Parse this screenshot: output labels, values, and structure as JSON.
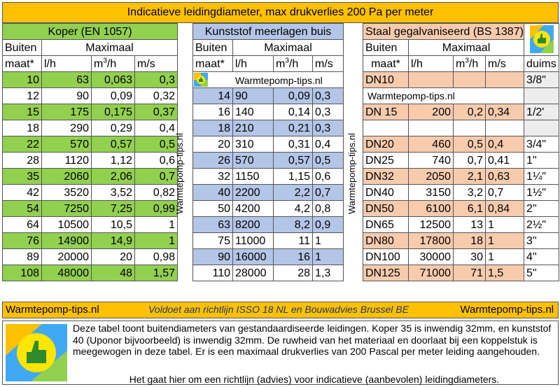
{
  "title": "Indicatieve leidingdiameter, max drukverlies 200 Pa per meter",
  "watermark": "Warmtepomp-tips.nl",
  "colors": {
    "header_orange": "#ffc000",
    "green": "#92d050",
    "blue": "#b4c6e7",
    "salmon": "#f8cbad"
  },
  "koper": {
    "title": "Koper  (EN 1057)",
    "h_buiten": "Buiten",
    "h_maximaal": "Maximaal",
    "h_maat": "maat*",
    "h_lh": "l/h",
    "h_m3": "m",
    "h_m3_sup": "3",
    "h_m3_tail": "/h",
    "h_ms": "m/s",
    "rows": [
      [
        "10",
        "63",
        "0,063",
        "0,3"
      ],
      [
        "12",
        "90",
        "0,09",
        "0,32"
      ],
      [
        "15",
        "175",
        "0,175",
        "0,37"
      ],
      [
        "18",
        "290",
        "0,29",
        "0,4"
      ],
      [
        "22",
        "570",
        "0,57",
        "0,5"
      ],
      [
        "28",
        "1120",
        "1,12",
        "0,6"
      ],
      [
        "35",
        "2060",
        "2,06",
        "0,7"
      ],
      [
        "42",
        "3520",
        "3,52",
        "0,82"
      ],
      [
        "54",
        "7250",
        "7,25",
        "0,99"
      ],
      [
        "64",
        "10500",
        "10,5",
        "1"
      ],
      [
        "76",
        "14900",
        "14,9",
        "1"
      ],
      [
        "89",
        "20000",
        "20",
        "0,98"
      ],
      [
        "108",
        "48000",
        "48",
        "1,57"
      ]
    ]
  },
  "kunststof": {
    "title": "Kunststof meerlagen buis",
    "h_buiten": "Buiten",
    "h_maximaal": "Maximaal",
    "h_maat": "maat*",
    "h_lh": "l/h",
    "h_m3": "m",
    "h_m3_sup": "3",
    "h_m3_tail": "/h",
    "h_ms": "m/s",
    "rows": [
      [
        "14",
        "90",
        "0,09",
        "0,3"
      ],
      [
        "16",
        "140",
        "0,14",
        "0,3"
      ],
      [
        "18",
        "210",
        "0,21",
        "0,3"
      ],
      [
        "20",
        "310",
        "0,31",
        "0,4"
      ],
      [
        "26",
        "570",
        "0,57",
        "0,5"
      ],
      [
        "32",
        "1150",
        "1,15",
        "0,6"
      ],
      [
        "40",
        "2200",
        "2,2",
        "0,7"
      ],
      [
        "50",
        "4200",
        "4,2",
        "0,8"
      ],
      [
        "63",
        "8200",
        "8,2",
        "0,9"
      ],
      [
        "75",
        "11000",
        "11",
        "1"
      ],
      [
        "90",
        "16000",
        "16",
        "1"
      ],
      [
        "110",
        "28000",
        "28",
        "1,3"
      ]
    ]
  },
  "staal": {
    "title": "Staal gegalvaniseerd (BS 1387)",
    "h_buiten": "Buiten",
    "h_maximaal": "Maximaal",
    "h_maat": "maat*",
    "h_lh": "l/h",
    "h_m3": "m",
    "h_m3_sup": "3",
    "h_m3_tail": "/h",
    "h_ms": "m/s",
    "h_duims": "duims",
    "rows": [
      [
        "DN10",
        "",
        "",
        "",
        "3/8\""
      ],
      [
        "DN 15",
        "200",
        "0,2",
        "0,34",
        "1/2'"
      ],
      [
        "DN20",
        "460",
        "0,5",
        "0,4",
        "3/4\""
      ],
      [
        "DN25",
        "740",
        "0,7",
        "0,41",
        "1\""
      ],
      [
        "DN32",
        "2050",
        "2,1",
        "0,63",
        "1¼\""
      ],
      [
        "DN40",
        "3150",
        "3,2",
        "0,7",
        "1½\""
      ],
      [
        "DN50",
        "6100",
        "6,1",
        "0,84",
        "2\""
      ],
      [
        "DN65",
        "12500",
        "13",
        "1",
        "2½\""
      ],
      [
        "DN80",
        "17800",
        "18",
        "1",
        "3\""
      ],
      [
        "DN100",
        "30000",
        "30",
        "1",
        "4\""
      ],
      [
        "DN125",
        "71000",
        "71",
        "1,5",
        "5\""
      ]
    ]
  },
  "footer": {
    "left": "Warmtepomp-tips.nl",
    "middle": "Voldoet aan richtlijn  ISSO 18 NL  en Bouwadvies Brussel BE",
    "right": "Warmtepomp-tips.nl"
  },
  "info": {
    "text": "Deze tabel toont buitendiameters van gestandaardiseerde leidingen. Koper 35 is inwendig 32mm, en kunststof 40 (Uponor bijvoorbeeld) is inwendig 32mm. De ruwheid van het materiaal en doorlaat bij een koppelstuk is meegewogen in deze tabel. Er is een maximaal drukverlies van 200 Pascal per meter leiding aangehouden.",
    "note": "Het gaat hier om een richtlijn (advies) voor indicatieve (aanbevolen) leidingdiameters."
  }
}
